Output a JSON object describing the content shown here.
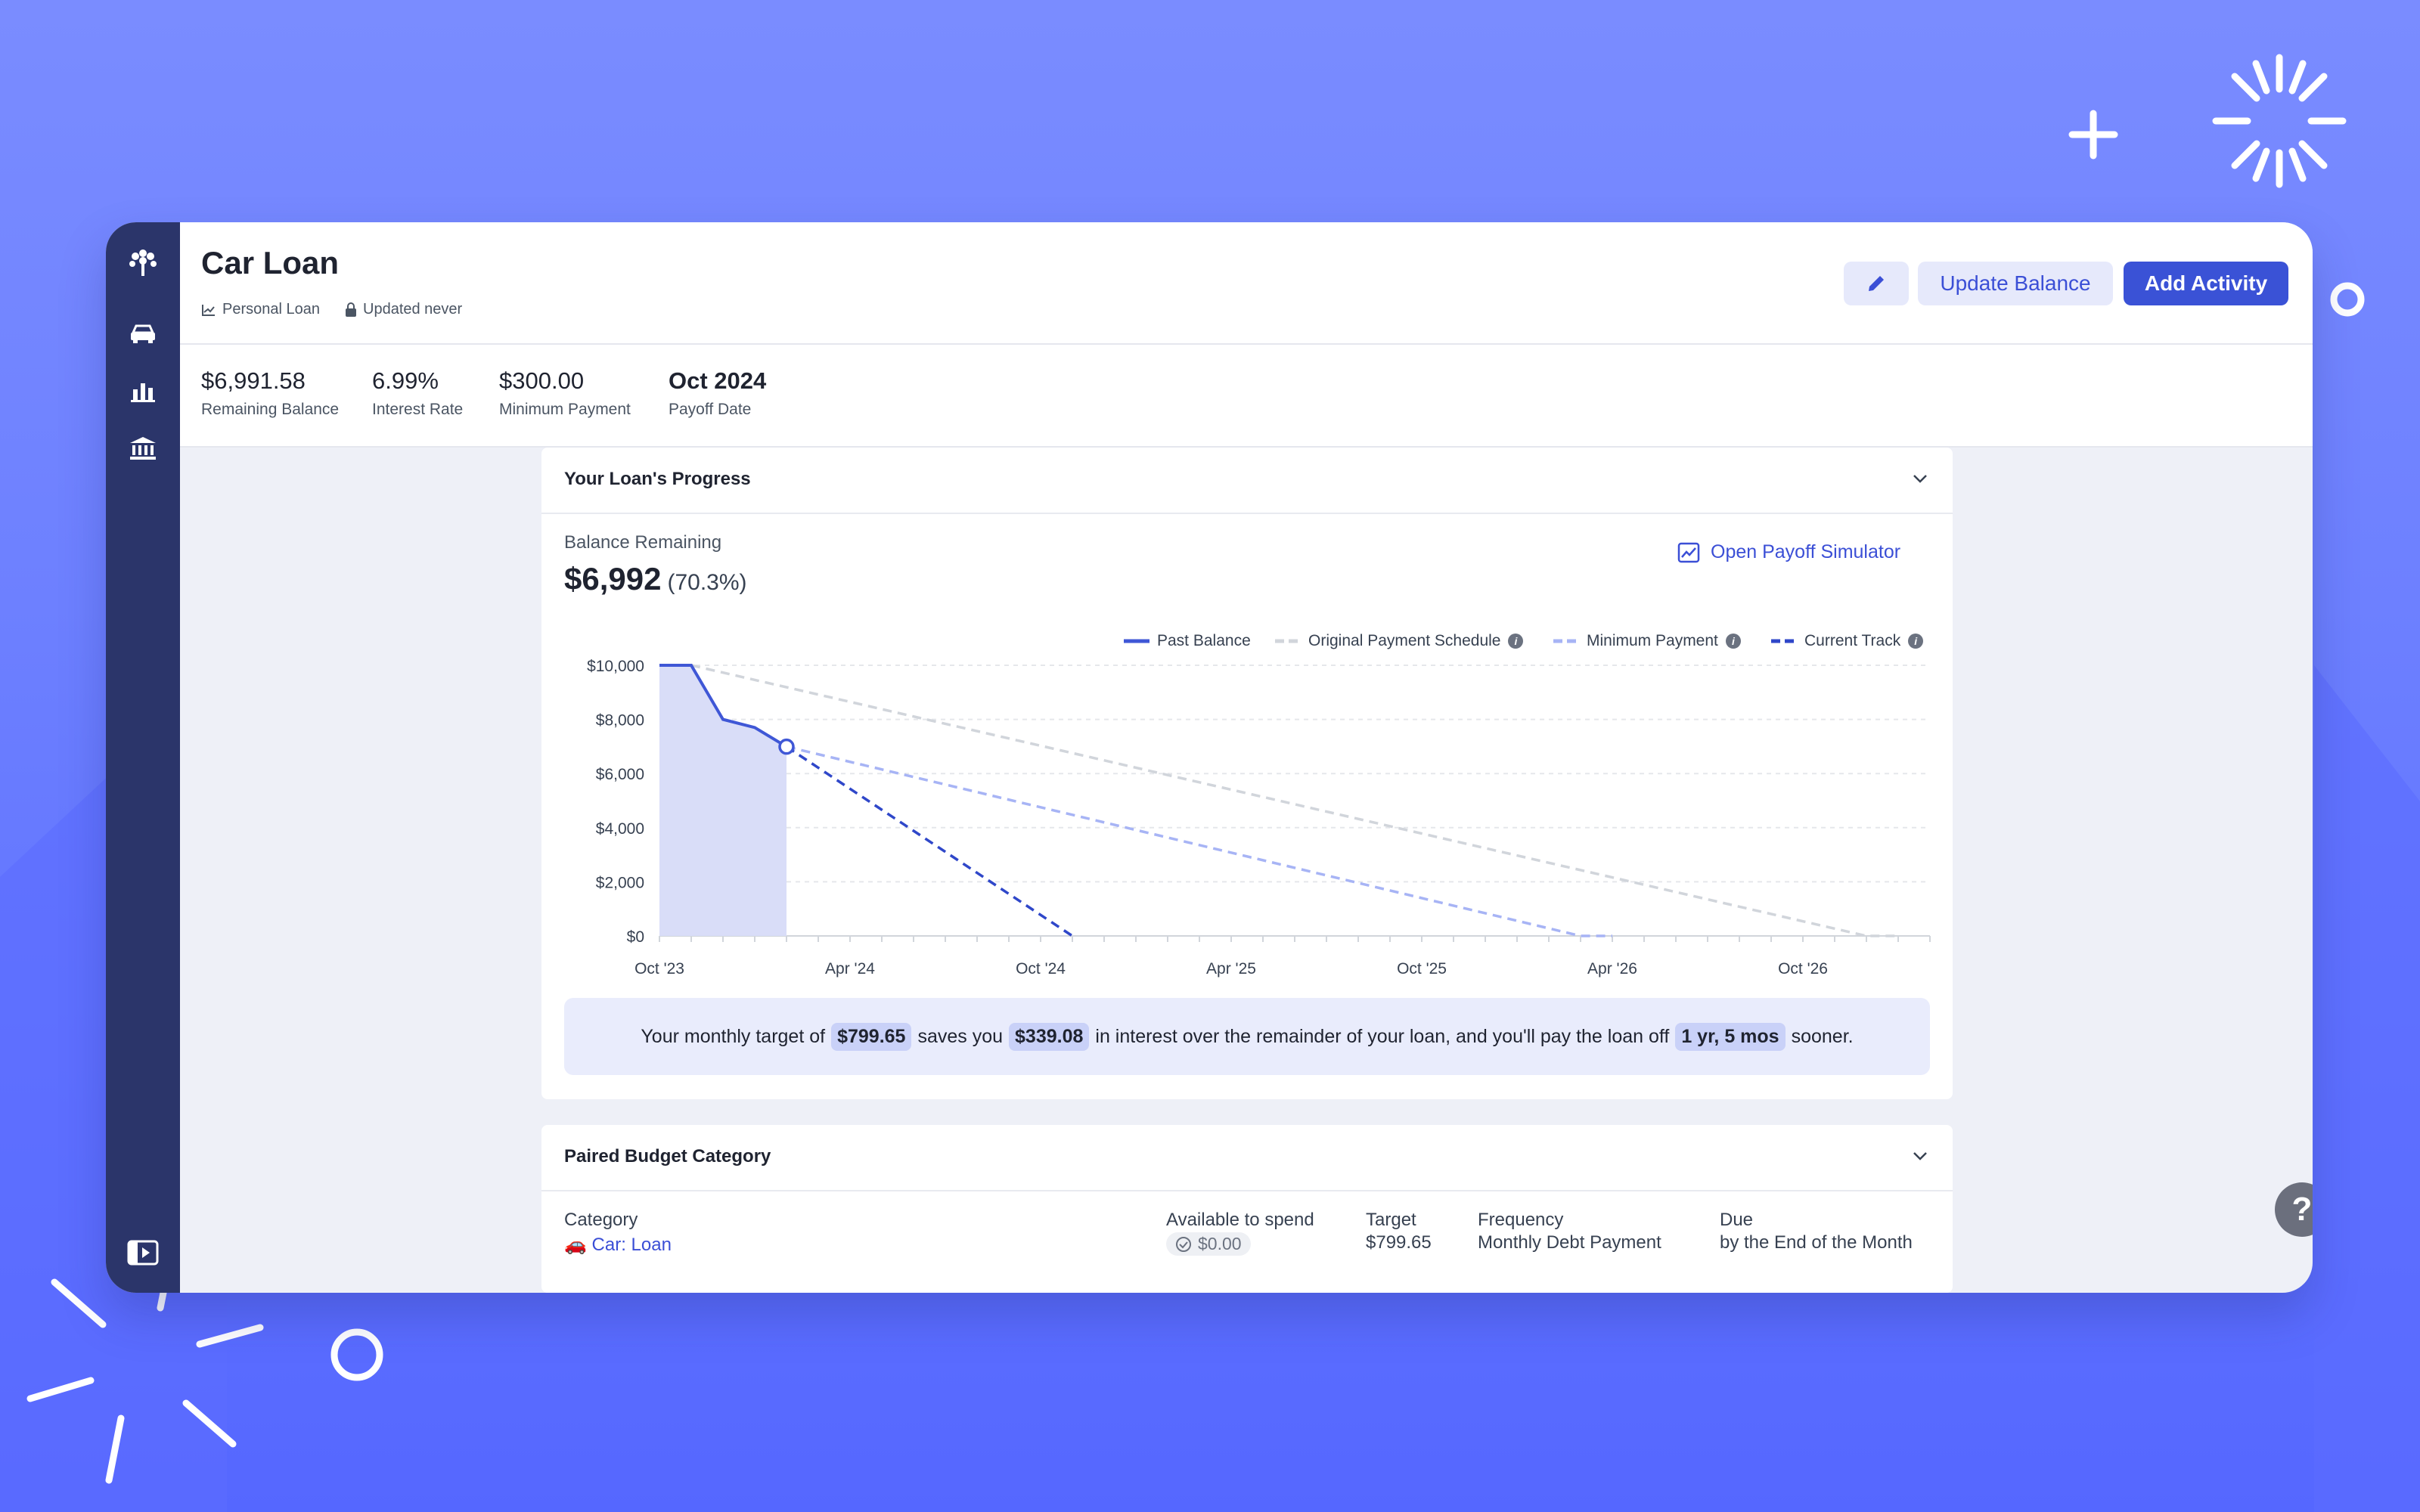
{
  "app": {
    "title": "Car Loan",
    "loan_type": "Personal Loan",
    "updated": "Updated never"
  },
  "toolbar": {
    "update_balance": "Update Balance",
    "add_activity": "Add Activity"
  },
  "icons": {
    "edit": "pencil-icon",
    "logo": "tree-icon",
    "loan": "car-icon",
    "reports": "bar-chart-icon",
    "accounts": "bank-icon",
    "collapse": "sidebar-toggle-icon",
    "help": "help-icon"
  },
  "stats": [
    {
      "value": "$6,991.58",
      "label": "Remaining Balance"
    },
    {
      "value": "6.99%",
      "label": "Interest Rate"
    },
    {
      "value": "$300.00",
      "label": "Minimum Payment"
    },
    {
      "value": "Oct 2024",
      "label": "Payoff Date"
    }
  ],
  "progress": {
    "section_title": "Your Loan's Progress",
    "balance_label": "Balance Remaining",
    "balance_value": "$6,992",
    "balance_pct": "(70.3%)",
    "simulator_link": "Open Payoff Simulator",
    "legend": [
      {
        "name": "Past Balance",
        "info": false
      },
      {
        "name": "Original Payment Schedule",
        "info": true
      },
      {
        "name": "Minimum Payment",
        "info": true
      },
      {
        "name": "Current Track",
        "info": true
      }
    ],
    "callout": {
      "p1": "Your monthly target of",
      "v1": "$799.65",
      "p2": "saves you",
      "v2": "$339.08",
      "p3": "in interest over the remainder of your loan, and you'll pay the loan off",
      "v3": "1 yr, 5 mos",
      "p4": "sooner."
    }
  },
  "chart_data": {
    "type": "line",
    "x_ticks": [
      "Oct '23",
      "Apr '24",
      "Oct '24",
      "Apr '25",
      "Oct '25",
      "Apr '26",
      "Oct '26"
    ],
    "y_ticks": [
      "$10,000",
      "$8,000",
      "$6,000",
      "$4,000",
      "$2,000",
      "$0"
    ],
    "ylim": [
      0,
      10000
    ],
    "x_domain_months": [
      0,
      40
    ],
    "grid": true,
    "legend_position": "top-right",
    "colors": {
      "past": "#3f57d6",
      "original": "#d1d5db",
      "minimum": "#a7b4f5",
      "current": "#2f47c9",
      "fill": "#d9ddf8"
    },
    "series": [
      {
        "name": "Past Balance",
        "points": [
          [
            0,
            10000
          ],
          [
            1,
            10000
          ],
          [
            2,
            8000
          ],
          [
            3,
            7700
          ],
          [
            4,
            6992
          ]
        ]
      },
      {
        "name": "Original Payment Schedule",
        "points": [
          [
            1,
            10000
          ],
          [
            38,
            0
          ],
          [
            39,
            0
          ]
        ]
      },
      {
        "name": "Minimum Payment",
        "points": [
          [
            4,
            6992
          ],
          [
            29,
            0
          ],
          [
            30,
            0
          ]
        ]
      },
      {
        "name": "Current Track",
        "points": [
          [
            4,
            6992
          ],
          [
            13,
            0
          ]
        ]
      }
    ]
  },
  "paired": {
    "section_title": "Paired Budget Category",
    "category_label": "Category",
    "category_value": "🚗 Car: Loan",
    "available_label": "Available to spend",
    "available_value": "$0.00",
    "target_label": "Target",
    "target_value": "$799.65",
    "frequency_label": "Frequency",
    "frequency_value": "Monthly Debt Payment",
    "due_label": "Due",
    "due_value": "by the End of the Month"
  }
}
